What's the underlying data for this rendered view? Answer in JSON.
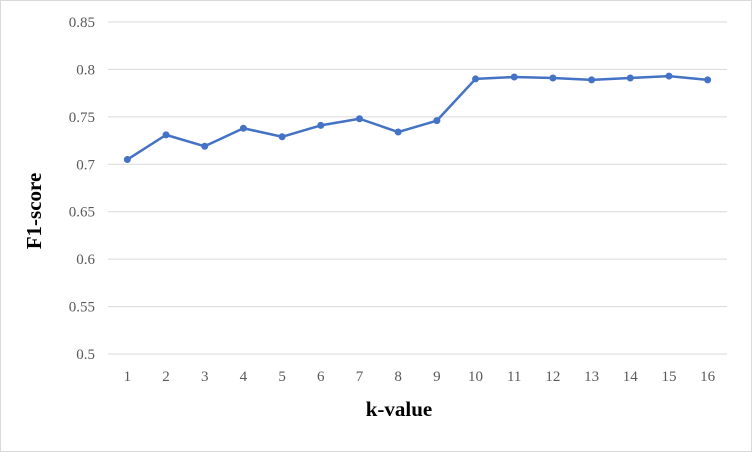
{
  "chart_data": {
    "type": "line",
    "title": "",
    "xlabel": "k-value",
    "ylabel": "F1-score",
    "categories": [
      "1",
      "2",
      "3",
      "4",
      "5",
      "6",
      "7",
      "8",
      "9",
      "10",
      "11",
      "12",
      "13",
      "14",
      "15",
      "16"
    ],
    "series": [
      {
        "values": [
          0.705,
          0.731,
          0.719,
          0.738,
          0.729,
          0.741,
          0.748,
          0.734,
          0.746,
          0.79,
          0.792,
          0.791,
          0.789,
          0.791,
          0.793,
          0.789
        ],
        "color": "#4472c4",
        "marker": "circle"
      }
    ],
    "ylim": [
      0.5,
      0.85
    ],
    "yticks": [
      "0.5",
      "0.55",
      "0.6",
      "0.65",
      "0.7",
      "0.75",
      "0.8",
      "0.85"
    ],
    "grid": true,
    "legend": "none"
  },
  "colors": {
    "line": "#4472c4",
    "grid": "#d9d9d9",
    "tick_text": "#595959",
    "axis_title": "#000000"
  }
}
